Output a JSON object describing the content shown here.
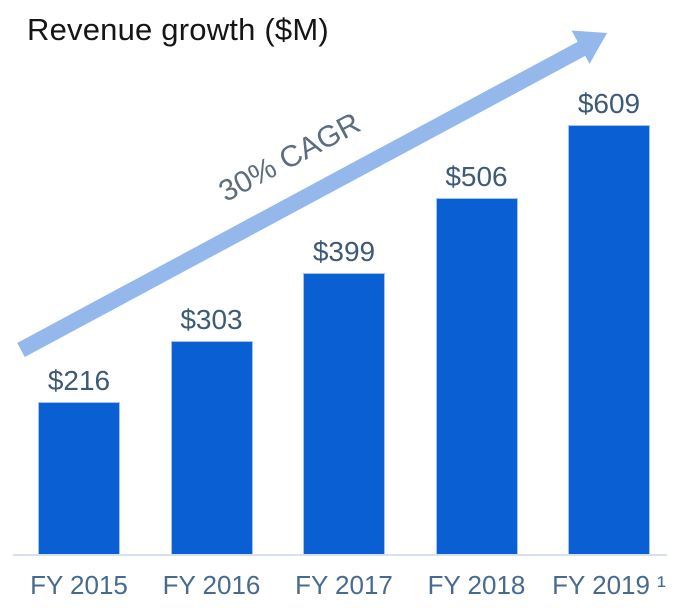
{
  "chart_data": {
    "type": "bar",
    "title": "Revenue growth ($M)",
    "categories": [
      "FY 2015",
      "FY 2016",
      "FY 2017",
      "FY 2018",
      "FY 2019 ¹"
    ],
    "values": [
      216,
      303,
      399,
      506,
      609
    ],
    "value_labels": [
      "$216",
      "$303",
      "$399",
      "$506",
      "$609"
    ],
    "annotation": "30% CAGR",
    "xlabel": "",
    "ylabel": "",
    "ylim": [
      0,
      620
    ],
    "grid": false,
    "legend": false,
    "axis_line": "bottom-only",
    "colors": {
      "bar": "#0a5fd2",
      "bar_edge": "#a6c3ee",
      "arrow": "#94b8eb",
      "value_label": "#3d5a76",
      "category_label": "#476b8e",
      "annotation": "#5d6d80",
      "baseline": "#d7e1ed",
      "title": "#151515"
    }
  }
}
